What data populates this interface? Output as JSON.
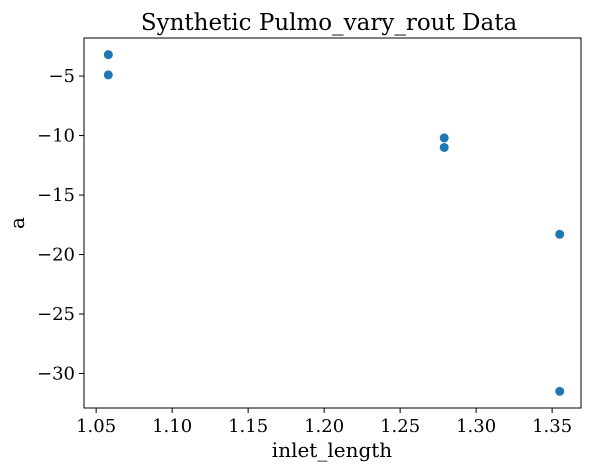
{
  "chart_data": {
    "type": "scatter",
    "title": "Synthetic Pulmo_vary_rout Data",
    "xlabel": "inlet_length",
    "ylabel": "a",
    "xlim": [
      1.042,
      1.369
    ],
    "ylim": [
      -32.9,
      -1.8
    ],
    "x_ticks": [
      1.05,
      1.1,
      1.15,
      1.2,
      1.25,
      1.3,
      1.35
    ],
    "x_tick_labels": [
      "1.05",
      "1.10",
      "1.15",
      "1.20",
      "1.25",
      "1.30",
      "1.35"
    ],
    "y_ticks": [
      -5,
      -10,
      -15,
      -20,
      -25,
      -30
    ],
    "y_tick_labels": [
      "−5",
      "−10",
      "−15",
      "−20",
      "−25",
      "−30"
    ],
    "grid": false,
    "marker_color": "#1f77b4",
    "points": [
      {
        "x": 1.058,
        "y": -3.2
      },
      {
        "x": 1.058,
        "y": -4.9
      },
      {
        "x": 1.279,
        "y": -10.2
      },
      {
        "x": 1.279,
        "y": -11.0
      },
      {
        "x": 1.355,
        "y": -18.3
      },
      {
        "x": 1.355,
        "y": -31.5
      }
    ]
  }
}
